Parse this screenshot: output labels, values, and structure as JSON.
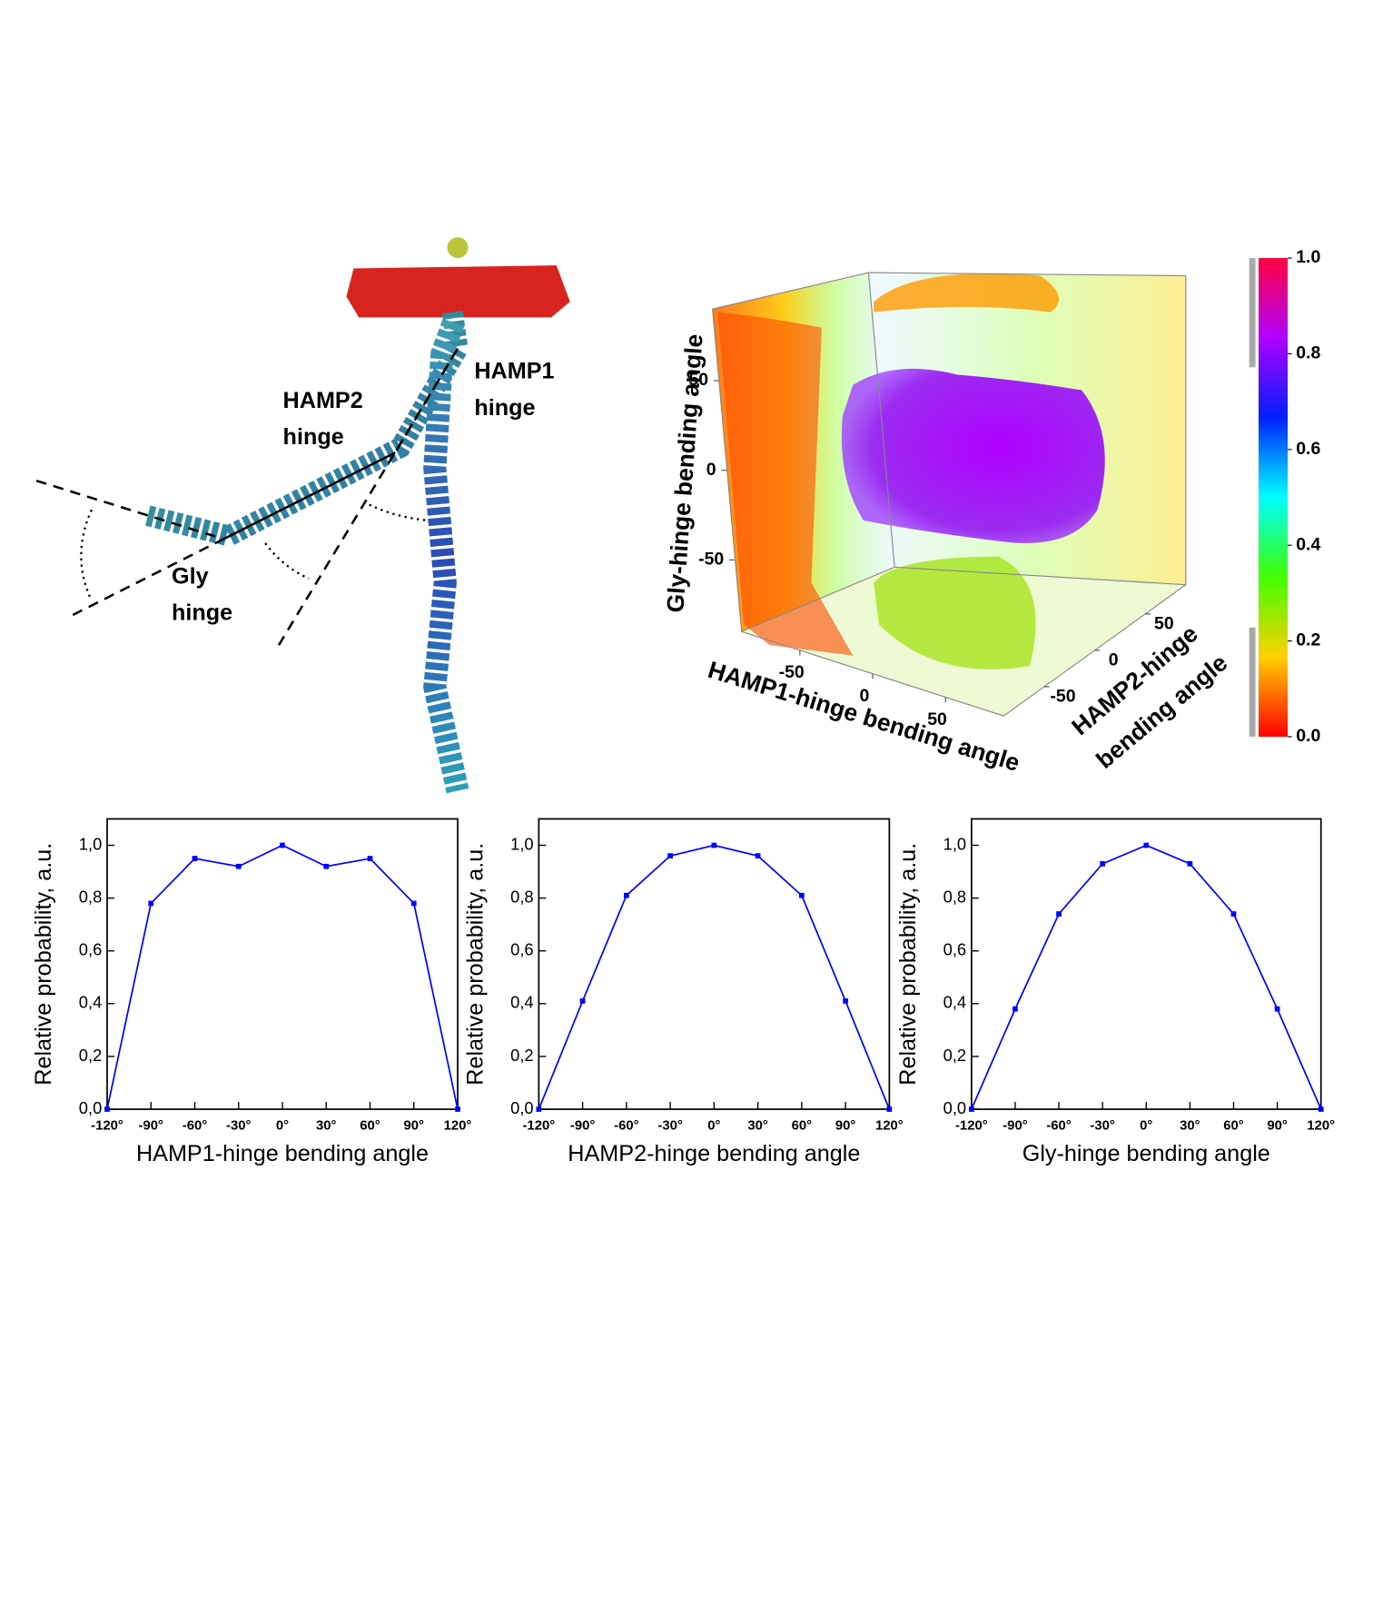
{
  "figure": {
    "labels": [
      [
        "HAMP1",
        "hinge"
      ],
      [
        "HAMP2",
        "hinge"
      ],
      [
        "Gly",
        "hinge"
      ]
    ]
  },
  "chart_data": [
    {
      "type": "line",
      "xlabel": "HAMP1-hinge bending angle",
      "ylabel": "Relative probability, a.u.",
      "color": "#0000ff",
      "x": [
        -120,
        -90,
        -60,
        -30,
        0,
        30,
        60,
        90,
        120
      ],
      "values": [
        0,
        0.78,
        0.95,
        0.92,
        1.0,
        0.92,
        0.95,
        0.78,
        0
      ],
      "xlim": [
        -120,
        120
      ],
      "ylim": [
        0,
        1.1
      ],
      "xticks": [
        {
          "value": -120,
          "label": "-120°"
        },
        {
          "value": -90,
          "label": "-90°"
        },
        {
          "value": -60,
          "label": "-60°"
        },
        {
          "value": -30,
          "label": "-30°"
        },
        {
          "value": 0,
          "label": "0°"
        },
        {
          "value": 30,
          "label": "30°"
        },
        {
          "value": 60,
          "label": "60°"
        },
        {
          "value": 90,
          "label": "90°"
        },
        {
          "value": 120,
          "label": "120°"
        }
      ],
      "yticks": [
        {
          "value": 0,
          "label": "0,0"
        },
        {
          "value": 0.2,
          "label": "0,2"
        },
        {
          "value": 0.4,
          "label": "0,4"
        },
        {
          "value": 0.6,
          "label": "0,6"
        },
        {
          "value": 0.8,
          "label": "0,8"
        },
        {
          "value": 1.0,
          "label": "1,0"
        }
      ]
    },
    {
      "type": "line",
      "xlabel": "HAMP2-hinge bending angle",
      "ylabel": "Relative probability, a.u.",
      "color": "#0000ff",
      "x": [
        -120,
        -90,
        -60,
        -30,
        0,
        30,
        60,
        90,
        120
      ],
      "values": [
        0,
        0.41,
        0.81,
        0.96,
        1.0,
        0.96,
        0.81,
        0.41,
        0
      ],
      "xlim": [
        -120,
        120
      ],
      "ylim": [
        0,
        1.1
      ],
      "xticks": [
        {
          "value": -120,
          "label": "-120°"
        },
        {
          "value": -90,
          "label": "-90°"
        },
        {
          "value": -60,
          "label": "-60°"
        },
        {
          "value": -30,
          "label": "-30°"
        },
        {
          "value": 0,
          "label": "0°"
        },
        {
          "value": 30,
          "label": "30°"
        },
        {
          "value": 60,
          "label": "60°"
        },
        {
          "value": 90,
          "label": "90°"
        },
        {
          "value": 120,
          "label": "120°"
        }
      ],
      "yticks": [
        {
          "value": 0,
          "label": "0,0"
        },
        {
          "value": 0.2,
          "label": "0,2"
        },
        {
          "value": 0.4,
          "label": "0,4"
        },
        {
          "value": 0.6,
          "label": "0,6"
        },
        {
          "value": 0.8,
          "label": "0,8"
        },
        {
          "value": 1.0,
          "label": "1,0"
        }
      ]
    },
    {
      "type": "line",
      "xlabel": "Gly-hinge bending angle",
      "ylabel": "Relative probability, a.u.",
      "color": "#0000ff",
      "x": [
        -120,
        -90,
        -60,
        -30,
        0,
        30,
        60,
        90,
        120
      ],
      "values": [
        0,
        0.38,
        0.74,
        0.93,
        1.0,
        0.93,
        0.74,
        0.38,
        0
      ],
      "xlim": [
        -120,
        120
      ],
      "ylim": [
        0,
        1.1
      ],
      "xticks": [
        {
          "value": -120,
          "label": "-120°"
        },
        {
          "value": -90,
          "label": "-90°"
        },
        {
          "value": -60,
          "label": "-60°"
        },
        {
          "value": -30,
          "label": "-30°"
        },
        {
          "value": 0,
          "label": "0°"
        },
        {
          "value": 30,
          "label": "30°"
        },
        {
          "value": 60,
          "label": "60°"
        },
        {
          "value": 90,
          "label": "90°"
        },
        {
          "value": 120,
          "label": "120°"
        }
      ],
      "yticks": [
        {
          "value": 0,
          "label": "0,0"
        },
        {
          "value": 0.2,
          "label": "0,2"
        },
        {
          "value": 0.4,
          "label": "0,4"
        },
        {
          "value": 0.6,
          "label": "0,6"
        },
        {
          "value": 0.8,
          "label": "0,8"
        },
        {
          "value": 1.0,
          "label": "1,0"
        }
      ]
    },
    {
      "type": "volume3d",
      "xlabel": "HAMP1-hinge bending angle",
      "ylabel": "Gly-hinge bending angle",
      "zlabel": [
        "HAMP2-hinge",
        "bending angle"
      ],
      "xlim": [
        -90,
        90
      ],
      "ylim": [
        -90,
        90
      ],
      "zlim": [
        -90,
        90
      ],
      "xticks": [
        -50,
        0,
        50
      ],
      "yticks": [
        -50,
        0,
        50
      ],
      "zticks": [
        -50,
        0,
        50
      ],
      "clim": [
        0,
        1
      ],
      "cticks": [
        {
          "value": 0,
          "label": "0.0"
        },
        {
          "value": 0.2,
          "label": "0.2"
        },
        {
          "value": 0.4,
          "label": "0.4"
        },
        {
          "value": 0.6,
          "label": "0.6"
        },
        {
          "value": 0.8,
          "label": "0.8"
        },
        {
          "value": 1.0,
          "label": "1.0"
        }
      ],
      "colormap": [
        "#ff0000",
        "#ffd000",
        "#40ff00",
        "#00ffff",
        "#0020ff",
        "#b000ff",
        "#ff0040"
      ]
    }
  ]
}
